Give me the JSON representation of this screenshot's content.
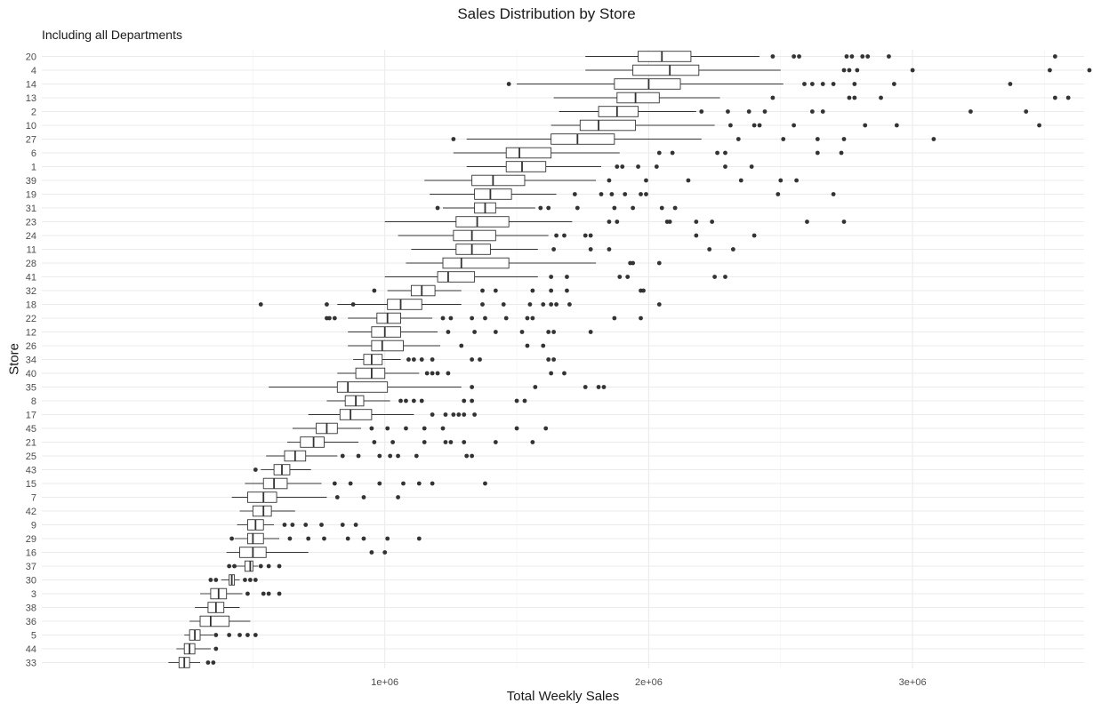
{
  "chart_data": {
    "type": "boxplot",
    "title": "Sales Distribution by Store",
    "subtitle": "Including all Departments",
    "xlabel": "Total Weekly Sales",
    "ylabel": "Store",
    "xlim": [
      -300000,
      3650000
    ],
    "x_ticks": [
      {
        "value": 1000000,
        "label": "1e+06"
      },
      {
        "value": 2000000,
        "label": "2e+06"
      },
      {
        "value": 3000000,
        "label": "3e+06"
      }
    ],
    "grid": true,
    "box_color": "#333333",
    "outlier_color": "#333333",
    "stores": [
      {
        "store": "20",
        "whisker_low": 1760000,
        "q1": 1960000,
        "median": 2050000,
        "q3": 2160000,
        "whisker_high": 2420000,
        "outliers": [
          2470000,
          2550000,
          2570000,
          2750000,
          2770000,
          2810000,
          2830000,
          2910000,
          3540000,
          3750000
        ]
      },
      {
        "store": "4",
        "whisker_low": 1760000,
        "q1": 1940000,
        "median": 2080000,
        "q3": 2190000,
        "whisker_high": 2500000,
        "outliers": [
          2740000,
          2760000,
          2790000,
          3000000,
          3520000,
          3670000
        ]
      },
      {
        "store": "14",
        "whisker_low": 1500000,
        "q1": 1870000,
        "median": 2000000,
        "q3": 2120000,
        "whisker_high": 2510000,
        "outliers": [
          1470000,
          2590000,
          2620000,
          2660000,
          2700000,
          2780000,
          2930000,
          3370000,
          3800000
        ]
      },
      {
        "store": "13",
        "whisker_low": 1640000,
        "q1": 1880000,
        "median": 1950000,
        "q3": 2040000,
        "whisker_high": 2270000,
        "outliers": [
          2470000,
          2760000,
          2780000,
          2880000,
          3540000,
          3590000
        ]
      },
      {
        "store": "2",
        "whisker_low": 1660000,
        "q1": 1810000,
        "median": 1880000,
        "q3": 1960000,
        "whisker_high": 2180000,
        "outliers": [
          2200000,
          2300000,
          2380000,
          2440000,
          2620000,
          2660000,
          3220000,
          3430000
        ]
      },
      {
        "store": "10",
        "whisker_low": 1630000,
        "q1": 1740000,
        "median": 1810000,
        "q3": 1950000,
        "whisker_high": 2250000,
        "outliers": [
          2310000,
          2400000,
          2420000,
          2550000,
          2820000,
          2940000,
          3480000,
          3740000
        ]
      },
      {
        "store": "27",
        "whisker_low": 1310000,
        "q1": 1630000,
        "median": 1730000,
        "q3": 1870000,
        "whisker_high": 2200000,
        "outliers": [
          1260000,
          2340000,
          2510000,
          2640000,
          2740000,
          3080000
        ]
      },
      {
        "store": "6",
        "whisker_low": 1260000,
        "q1": 1460000,
        "median": 1510000,
        "q3": 1630000,
        "whisker_high": 1890000,
        "outliers": [
          2040000,
          2090000,
          2260000,
          2290000,
          2640000,
          2730000
        ]
      },
      {
        "store": "1",
        "whisker_low": 1310000,
        "q1": 1460000,
        "median": 1520000,
        "q3": 1610000,
        "whisker_high": 1820000,
        "outliers": [
          1880000,
          1900000,
          1960000,
          2030000,
          2290000,
          2390000
        ]
      },
      {
        "store": "39",
        "whisker_low": 1150000,
        "q1": 1330000,
        "median": 1410000,
        "q3": 1530000,
        "whisker_high": 1800000,
        "outliers": [
          1850000,
          1990000,
          2150000,
          2350000,
          2500000,
          2560000
        ]
      },
      {
        "store": "19",
        "whisker_low": 1170000,
        "q1": 1340000,
        "median": 1400000,
        "q3": 1480000,
        "whisker_high": 1650000,
        "outliers": [
          1720000,
          1820000,
          1860000,
          1910000,
          1970000,
          1990000,
          2490000,
          2700000
        ]
      },
      {
        "store": "31",
        "whisker_low": 1220000,
        "q1": 1340000,
        "median": 1380000,
        "q3": 1420000,
        "whisker_high": 1570000,
        "outliers": [
          1200000,
          1590000,
          1620000,
          1730000,
          1870000,
          1940000,
          2050000,
          2100000
        ]
      },
      {
        "store": "23",
        "whisker_low": 1000000,
        "q1": 1270000,
        "median": 1350000,
        "q3": 1470000,
        "whisker_high": 1710000,
        "outliers": [
          1850000,
          1880000,
          2070000,
          2080000,
          2180000,
          2240000,
          2600000,
          2740000
        ]
      },
      {
        "store": "24",
        "whisker_low": 1050000,
        "q1": 1260000,
        "median": 1330000,
        "q3": 1420000,
        "whisker_high": 1620000,
        "outliers": [
          1650000,
          1680000,
          1760000,
          1780000,
          2180000,
          2400000
        ]
      },
      {
        "store": "11",
        "whisker_low": 1100000,
        "q1": 1270000,
        "median": 1330000,
        "q3": 1400000,
        "whisker_high": 1580000,
        "outliers": [
          1640000,
          1780000,
          1850000,
          2230000,
          2320000
        ]
      },
      {
        "store": "28",
        "whisker_low": 1080000,
        "q1": 1220000,
        "median": 1290000,
        "q3": 1470000,
        "whisker_high": 1800000,
        "outliers": [
          1930000,
          1940000,
          2040000
        ]
      },
      {
        "store": "41",
        "whisker_low": 1000000,
        "q1": 1200000,
        "median": 1240000,
        "q3": 1340000,
        "whisker_high": 1580000,
        "outliers": [
          1630000,
          1690000,
          1890000,
          1920000,
          2250000,
          2290000
        ]
      },
      {
        "store": "32",
        "whisker_low": 1010000,
        "q1": 1100000,
        "median": 1140000,
        "q3": 1190000,
        "whisker_high": 1290000,
        "outliers": [
          960000,
          1370000,
          1420000,
          1560000,
          1630000,
          1690000,
          1970000,
          1980000
        ]
      },
      {
        "store": "18",
        "whisker_low": 820000,
        "q1": 1010000,
        "median": 1060000,
        "q3": 1140000,
        "whisker_high": 1290000,
        "outliers": [
          530000,
          780000,
          880000,
          1370000,
          1450000,
          1550000,
          1600000,
          1630000,
          1650000,
          1700000,
          2040000
        ]
      },
      {
        "store": "22",
        "whisker_low": 860000,
        "q1": 970000,
        "median": 1010000,
        "q3": 1060000,
        "whisker_high": 1180000,
        "outliers": [
          780000,
          790000,
          810000,
          1220000,
          1250000,
          1330000,
          1380000,
          1460000,
          1540000,
          1560000,
          1870000,
          1970000
        ]
      },
      {
        "store": "12",
        "whisker_low": 860000,
        "q1": 950000,
        "median": 1000000,
        "q3": 1060000,
        "whisker_high": 1200000,
        "outliers": [
          1240000,
          1340000,
          1420000,
          1520000,
          1620000,
          1640000,
          1780000
        ]
      },
      {
        "store": "26",
        "whisker_low": 860000,
        "q1": 950000,
        "median": 990000,
        "q3": 1070000,
        "whisker_high": 1210000,
        "outliers": [
          1290000,
          1540000,
          1600000
        ]
      },
      {
        "store": "34",
        "whisker_low": 880000,
        "q1": 920000,
        "median": 950000,
        "q3": 990000,
        "whisker_high": 1060000,
        "outliers": [
          1090000,
          1110000,
          1140000,
          1180000,
          1330000,
          1360000,
          1620000,
          1640000
        ]
      },
      {
        "store": "40",
        "whisker_low": 820000,
        "q1": 890000,
        "median": 950000,
        "q3": 1000000,
        "whisker_high": 1130000,
        "outliers": [
          1160000,
          1180000,
          1200000,
          1240000,
          1630000,
          1680000
        ]
      },
      {
        "store": "35",
        "whisker_low": 560000,
        "q1": 820000,
        "median": 860000,
        "q3": 1010000,
        "whisker_high": 1290000,
        "outliers": [
          1330000,
          1570000,
          1760000,
          1810000,
          1830000
        ]
      },
      {
        "store": "8",
        "whisker_low": 780000,
        "q1": 850000,
        "median": 890000,
        "q3": 920000,
        "whisker_high": 1020000,
        "outliers": [
          1060000,
          1080000,
          1110000,
          1140000,
          1300000,
          1330000,
          1500000,
          1530000
        ]
      },
      {
        "store": "17",
        "whisker_low": 710000,
        "q1": 830000,
        "median": 870000,
        "q3": 950000,
        "whisker_high": 1110000,
        "outliers": [
          1180000,
          1230000,
          1260000,
          1280000,
          1300000,
          1340000
        ]
      },
      {
        "store": "45",
        "whisker_low": 650000,
        "q1": 740000,
        "median": 780000,
        "q3": 820000,
        "whisker_high": 910000,
        "outliers": [
          950000,
          1010000,
          1080000,
          1150000,
          1220000,
          1500000,
          1610000
        ]
      },
      {
        "store": "21",
        "whisker_low": 630000,
        "q1": 680000,
        "median": 730000,
        "q3": 770000,
        "whisker_high": 900000,
        "outliers": [
          960000,
          1030000,
          1150000,
          1230000,
          1250000,
          1300000,
          1420000,
          1560000
        ]
      },
      {
        "store": "25",
        "whisker_low": 550000,
        "q1": 620000,
        "median": 660000,
        "q3": 700000,
        "whisker_high": 820000,
        "outliers": [
          840000,
          900000,
          980000,
          1020000,
          1050000,
          1120000,
          1310000,
          1330000
        ]
      },
      {
        "store": "43",
        "whisker_low": 530000,
        "q1": 580000,
        "median": 610000,
        "q3": 640000,
        "whisker_high": 720000,
        "outliers": [
          510000
        ]
      },
      {
        "store": "15",
        "whisker_low": 470000,
        "q1": 540000,
        "median": 580000,
        "q3": 630000,
        "whisker_high": 760000,
        "outliers": [
          810000,
          870000,
          980000,
          1070000,
          1130000,
          1180000,
          1380000
        ]
      },
      {
        "store": "7",
        "whisker_low": 420000,
        "q1": 480000,
        "median": 540000,
        "q3": 590000,
        "whisker_high": 780000,
        "outliers": [
          820000,
          920000,
          1050000
        ]
      },
      {
        "store": "42",
        "whisker_low": 450000,
        "q1": 500000,
        "median": 540000,
        "q3": 570000,
        "whisker_high": 660000,
        "outliers": []
      },
      {
        "store": "9",
        "whisker_low": 440000,
        "q1": 480000,
        "median": 510000,
        "q3": 540000,
        "whisker_high": 580000,
        "outliers": [
          620000,
          650000,
          700000,
          760000,
          840000,
          890000
        ]
      },
      {
        "store": "29",
        "whisker_low": 430000,
        "q1": 480000,
        "median": 500000,
        "q3": 540000,
        "whisker_high": 600000,
        "outliers": [
          420000,
          640000,
          710000,
          770000,
          860000,
          920000,
          1010000,
          1130000
        ]
      },
      {
        "store": "16",
        "whisker_low": 400000,
        "q1": 450000,
        "median": 500000,
        "q3": 550000,
        "whisker_high": 710000,
        "outliers": [
          950000,
          1000000
        ]
      },
      {
        "store": "37",
        "whisker_low": 420000,
        "q1": 470000,
        "median": 490000,
        "q3": 500000,
        "whisker_high": 520000,
        "outliers": [
          410000,
          430000,
          530000,
          560000,
          600000
        ]
      },
      {
        "store": "30",
        "whisker_low": 380000,
        "q1": 410000,
        "median": 420000,
        "q3": 430000,
        "whisker_high": 450000,
        "outliers": [
          340000,
          360000,
          470000,
          490000,
          510000
        ]
      },
      {
        "store": "3",
        "whisker_low": 300000,
        "q1": 340000,
        "median": 370000,
        "q3": 400000,
        "whisker_high": 460000,
        "outliers": [
          480000,
          540000,
          560000,
          600000
        ]
      },
      {
        "store": "38",
        "whisker_low": 280000,
        "q1": 330000,
        "median": 360000,
        "q3": 390000,
        "whisker_high": 450000,
        "outliers": []
      },
      {
        "store": "36",
        "whisker_low": 260000,
        "q1": 300000,
        "median": 340000,
        "q3": 410000,
        "whisker_high": 490000,
        "outliers": []
      },
      {
        "store": "5",
        "whisker_low": 240000,
        "q1": 260000,
        "median": 280000,
        "q3": 300000,
        "whisker_high": 350000,
        "outliers": [
          360000,
          410000,
          450000,
          480000,
          510000
        ]
      },
      {
        "store": "44",
        "whisker_low": 210000,
        "q1": 240000,
        "median": 260000,
        "q3": 280000,
        "whisker_high": 340000,
        "outliers": [
          360000
        ]
      },
      {
        "store": "33",
        "whisker_low": 180000,
        "q1": 220000,
        "median": 240000,
        "q3": 260000,
        "whisker_high": 300000,
        "outliers": [
          330000,
          350000
        ]
      }
    ]
  }
}
